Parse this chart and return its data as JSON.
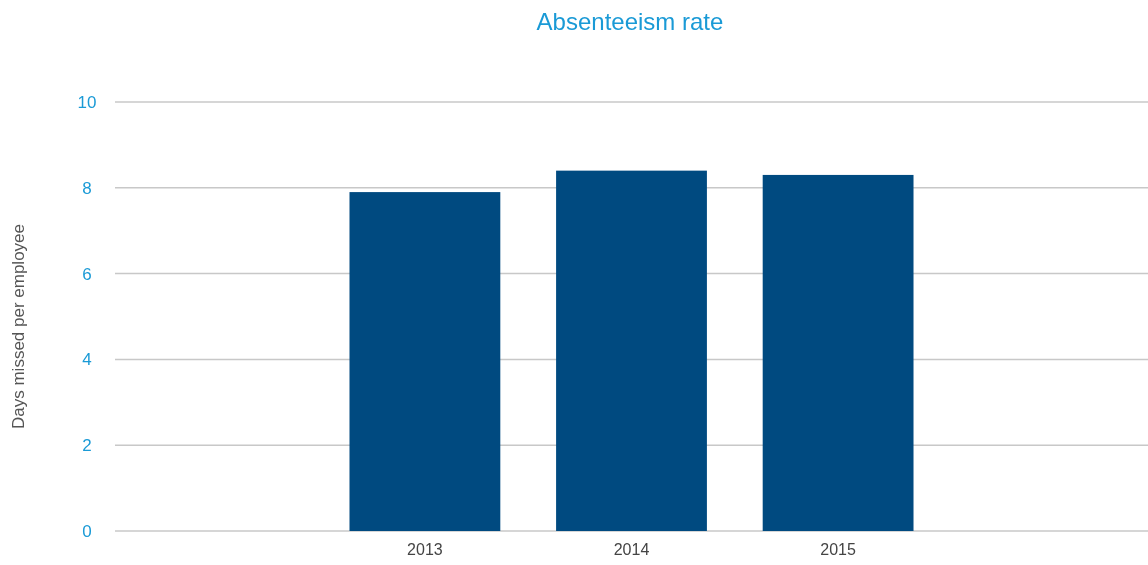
{
  "chart_data": {
    "type": "bar",
    "title": "Absenteeism rate",
    "ylabel": "Days missed per employee",
    "categories": [
      null,
      "2013",
      "2014",
      "2015",
      null
    ],
    "values": [
      null,
      7.9,
      8.4,
      8.3,
      null
    ],
    "color": "#004a80",
    "ylim": [
      0,
      10
    ],
    "yticks": [
      0,
      2,
      4,
      6,
      8,
      10
    ],
    "grid": "y"
  }
}
